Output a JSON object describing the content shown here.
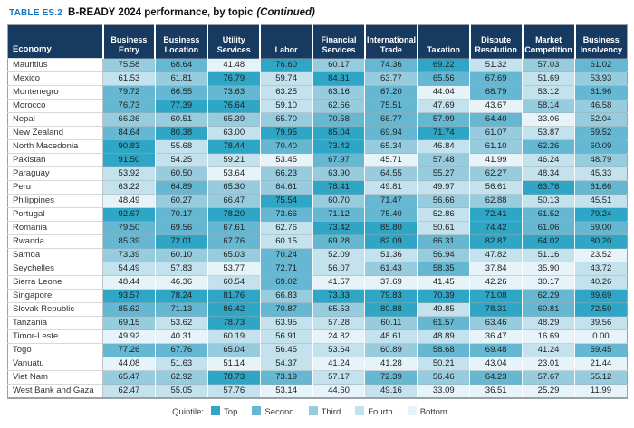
{
  "title": {
    "tag": "TABLE ES.2",
    "text": "B-READY 2024 performance, by topic",
    "continued": "(Continued)"
  },
  "quintile_colors": {
    "q1": "#2fa6c6",
    "q2": "#66b8d2",
    "q3": "#97ccde",
    "q4": "#c4e2ee",
    "q5": "#e6f3f9"
  },
  "header_color": "#173a61",
  "table": {
    "economy_header": "Economy",
    "columns": [
      "Business Entry",
      "Business Location",
      "Utility Services",
      "Labor",
      "Financial Services",
      "International Trade",
      "Taxation",
      "Dispute Resolution",
      "Market Competition",
      "Business Insolvency"
    ],
    "rows": [
      {
        "economy": "Mauritius",
        "values": [
          "75.58",
          "68.64",
          "41.48",
          "76.60",
          "60.17",
          "74.36",
          "69.22",
          "51.32",
          "57.03",
          "61.02"
        ],
        "quintiles": [
          3,
          2,
          5,
          1,
          3,
          2,
          1,
          4,
          3,
          2
        ]
      },
      {
        "economy": "Mexico",
        "values": [
          "61.53",
          "61.81",
          "76.79",
          "59.74",
          "84.31",
          "63.77",
          "65.56",
          "67.69",
          "51.69",
          "53.93"
        ],
        "quintiles": [
          4,
          3,
          1,
          4,
          1,
          3,
          2,
          2,
          4,
          3
        ]
      },
      {
        "economy": "Montenegro",
        "values": [
          "79.72",
          "66.55",
          "73.63",
          "63.25",
          "63.16",
          "67.20",
          "44.04",
          "68.79",
          "53.12",
          "61.96"
        ],
        "quintiles": [
          2,
          2,
          2,
          4,
          3,
          2,
          5,
          2,
          4,
          2
        ]
      },
      {
        "economy": "Morocco",
        "values": [
          "76.73",
          "77.39",
          "76.64",
          "59.10",
          "62.66",
          "75.51",
          "47.69",
          "43.67",
          "58.14",
          "46.58"
        ],
        "quintiles": [
          2,
          1,
          1,
          4,
          3,
          2,
          4,
          5,
          3,
          3
        ]
      },
      {
        "economy": "Nepal",
        "values": [
          "66.36",
          "60.51",
          "65.39",
          "65.70",
          "70.58",
          "66.77",
          "57.99",
          "64.40",
          "33.06",
          "52.04"
        ],
        "quintiles": [
          3,
          3,
          3,
          3,
          2,
          2,
          2,
          2,
          5,
          3
        ]
      },
      {
        "economy": "New Zealand",
        "values": [
          "84.64",
          "80.38",
          "63.00",
          "79.95",
          "85.04",
          "69.94",
          "71.74",
          "61.07",
          "53.87",
          "59.52"
        ],
        "quintiles": [
          2,
          1,
          4,
          1,
          1,
          2,
          1,
          3,
          4,
          2
        ]
      },
      {
        "economy": "North Macedonia",
        "values": [
          "90.83",
          "55.68",
          "78.44",
          "70.40",
          "73.42",
          "65.34",
          "46.84",
          "61.10",
          "62.26",
          "60.09"
        ],
        "quintiles": [
          1,
          4,
          1,
          2,
          1,
          3,
          4,
          3,
          2,
          2
        ]
      },
      {
        "economy": "Pakistan",
        "values": [
          "91.50",
          "54.25",
          "59.21",
          "53.45",
          "67.97",
          "45.71",
          "57.48",
          "41.99",
          "46.24",
          "48.79"
        ],
        "quintiles": [
          1,
          4,
          4,
          5,
          2,
          5,
          3,
          5,
          4,
          3
        ]
      },
      {
        "economy": "Paraguay",
        "values": [
          "53.92",
          "60.50",
          "53.64",
          "66.23",
          "63.90",
          "64.55",
          "55.27",
          "62.27",
          "48.34",
          "45.33"
        ],
        "quintiles": [
          4,
          3,
          5,
          3,
          3,
          3,
          3,
          3,
          4,
          4
        ]
      },
      {
        "economy": "Peru",
        "values": [
          "63.22",
          "64.89",
          "65.30",
          "64.61",
          "78.41",
          "49.81",
          "49.97",
          "56.61",
          "63.76",
          "61.66"
        ],
        "quintiles": [
          4,
          2,
          3,
          3,
          1,
          4,
          4,
          4,
          1,
          2
        ]
      },
      {
        "economy": "Philippines",
        "values": [
          "48.49",
          "60.27",
          "66.47",
          "75.54",
          "60.70",
          "71.47",
          "56.66",
          "62.88",
          "50.13",
          "45.51"
        ],
        "quintiles": [
          5,
          3,
          3,
          1,
          3,
          2,
          3,
          3,
          4,
          4
        ]
      },
      {
        "economy": "Portugal",
        "values": [
          "92.67",
          "70.17",
          "78.20",
          "73.66",
          "71.12",
          "75.40",
          "52.86",
          "72.41",
          "61.52",
          "79.24"
        ],
        "quintiles": [
          1,
          2,
          1,
          2,
          2,
          2,
          4,
          1,
          2,
          1
        ]
      },
      {
        "economy": "Romania",
        "values": [
          "79.50",
          "69.56",
          "67.61",
          "62.76",
          "73.42",
          "85.80",
          "50.61",
          "74.42",
          "61.06",
          "59.00"
        ],
        "quintiles": [
          2,
          2,
          2,
          4,
          1,
          1,
          4,
          1,
          2,
          2
        ]
      },
      {
        "economy": "Rwanda",
        "values": [
          "85.39",
          "72.01",
          "67.76",
          "60.15",
          "69.28",
          "82.09",
          "66.31",
          "82.87",
          "64.02",
          "80.20"
        ],
        "quintiles": [
          2,
          1,
          2,
          4,
          2,
          1,
          2,
          1,
          1,
          1
        ]
      },
      {
        "economy": "Samoa",
        "values": [
          "73.39",
          "60.10",
          "65.03",
          "70.24",
          "52.09",
          "51.36",
          "56.94",
          "47.82",
          "51.16",
          "23.52"
        ],
        "quintiles": [
          3,
          3,
          3,
          2,
          4,
          4,
          3,
          4,
          4,
          5
        ]
      },
      {
        "economy": "Seychelles",
        "values": [
          "54.49",
          "57.83",
          "53.77",
          "72.71",
          "56.07",
          "61.43",
          "58.35",
          "37.84",
          "35.90",
          "43.72"
        ],
        "quintiles": [
          4,
          4,
          5,
          2,
          4,
          3,
          2,
          5,
          5,
          4
        ]
      },
      {
        "economy": "Sierra Leone",
        "values": [
          "48.44",
          "46.36",
          "60.54",
          "69.02",
          "41.57",
          "37.69",
          "41.45",
          "42.26",
          "30.17",
          "40.26"
        ],
        "quintiles": [
          5,
          5,
          4,
          2,
          5,
          5,
          5,
          5,
          5,
          4
        ]
      },
      {
        "economy": "Singapore",
        "values": [
          "93.57",
          "78.24",
          "81.76",
          "66.83",
          "73.33",
          "79.83",
          "70.39",
          "71.08",
          "62.29",
          "89.69"
        ],
        "quintiles": [
          1,
          1,
          1,
          3,
          1,
          1,
          1,
          1,
          2,
          1
        ]
      },
      {
        "economy": "Slovak Republic",
        "values": [
          "85.62",
          "71.13",
          "86.42",
          "70.87",
          "65.53",
          "80.88",
          "49.85",
          "78.31",
          "60.81",
          "72.59"
        ],
        "quintiles": [
          2,
          2,
          1,
          2,
          3,
          1,
          4,
          1,
          2,
          1
        ]
      },
      {
        "economy": "Tanzania",
        "values": [
          "69.15",
          "53.62",
          "78.73",
          "63.95",
          "57.28",
          "60.11",
          "61.57",
          "63.46",
          "48.29",
          "39.56"
        ],
        "quintiles": [
          3,
          4,
          1,
          4,
          4,
          3,
          2,
          3,
          4,
          4
        ]
      },
      {
        "economy": "Timor-Leste",
        "values": [
          "49.92",
          "40.31",
          "60.19",
          "56.91",
          "24.82",
          "48.61",
          "48.89",
          "36.47",
          "16.69",
          "0.00"
        ],
        "quintiles": [
          5,
          5,
          4,
          4,
          5,
          4,
          4,
          5,
          5,
          5
        ]
      },
      {
        "economy": "Togo",
        "values": [
          "77.26",
          "67.76",
          "65.04",
          "56.45",
          "53.64",
          "60.89",
          "58.68",
          "69.48",
          "41.24",
          "59.45"
        ],
        "quintiles": [
          2,
          2,
          3,
          4,
          4,
          3,
          2,
          2,
          4,
          2
        ]
      },
      {
        "economy": "Vanuatu",
        "values": [
          "44.08",
          "51.63",
          "51.14",
          "54.37",
          "41.24",
          "41.28",
          "50.21",
          "43.04",
          "23.01",
          "21.44"
        ],
        "quintiles": [
          5,
          4,
          5,
          4,
          5,
          5,
          4,
          5,
          5,
          5
        ]
      },
      {
        "economy": "Viet Nam",
        "values": [
          "65.47",
          "62.92",
          "78.73",
          "73.19",
          "57.17",
          "72.39",
          "56.46",
          "64.23",
          "57.67",
          "55.12"
        ],
        "quintiles": [
          3,
          3,
          1,
          2,
          4,
          2,
          3,
          2,
          3,
          3
        ]
      },
      {
        "economy": "West Bank and Gaza",
        "values": [
          "62.47",
          "55.05",
          "57.76",
          "53.14",
          "44.60",
          "49.16",
          "33.09",
          "36.51",
          "25.29",
          "11.99"
        ],
        "quintiles": [
          4,
          4,
          4,
          5,
          5,
          4,
          5,
          5,
          5,
          5
        ]
      }
    ]
  },
  "legend": {
    "label": "Quintile:",
    "items": [
      {
        "label": "Top",
        "color": "#2fa6c6"
      },
      {
        "label": "Second",
        "color": "#66b8d2"
      },
      {
        "label": "Third",
        "color": "#97ccde"
      },
      {
        "label": "Fourth",
        "color": "#c4e2ee"
      },
      {
        "label": "Bottom",
        "color": "#e6f3f9"
      }
    ]
  }
}
